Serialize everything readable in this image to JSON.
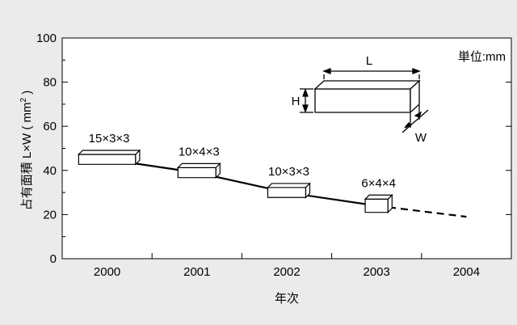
{
  "chart_data": {
    "type": "line",
    "xlabel": "年次",
    "ylabel": "占有面積 L×W ( mm",
    "ylabel_sup": "2",
    "ylabel_close": " )",
    "unit_label": "単位:mm",
    "ylim": [
      0,
      100
    ],
    "yticks": [
      0,
      20,
      40,
      60,
      80,
      100
    ],
    "categories": [
      "2000",
      "2001",
      "2002",
      "2003",
      "2004"
    ],
    "series": [
      {
        "style": "solid",
        "points": [
          [
            2000,
            45
          ],
          [
            2001,
            39
          ],
          [
            2002,
            30
          ],
          [
            2003,
            24
          ]
        ]
      },
      {
        "style": "dashed",
        "points": [
          [
            2003,
            24
          ],
          [
            2004,
            19
          ]
        ]
      }
    ],
    "annotations": [
      {
        "x": 2000,
        "y": 45,
        "label": "15×3×3"
      },
      {
        "x": 2001,
        "y": 39,
        "label": "10×4×3"
      },
      {
        "x": 2002,
        "y": 30,
        "label": "10×3×3"
      },
      {
        "x": 2003,
        "y": 24,
        "label": "6×4×4"
      }
    ],
    "diagram_labels": {
      "length": "L",
      "height": "H",
      "width": "W"
    },
    "grid": false,
    "colors": {
      "background": "#ebebeb",
      "plot_background": "#ffffff",
      "line": "#000000"
    }
  }
}
